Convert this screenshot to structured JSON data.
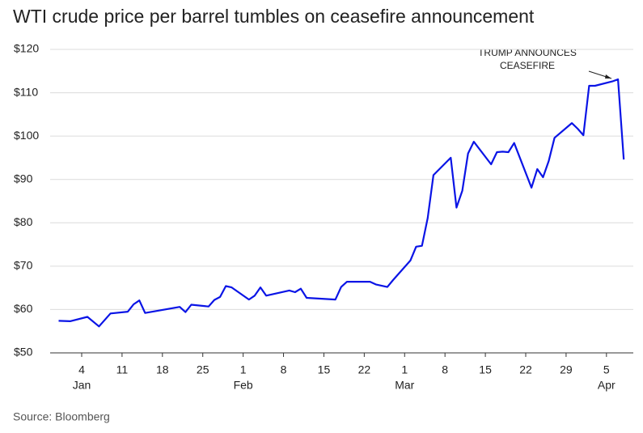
{
  "chart_data": {
    "type": "line",
    "title": "WTI crude price per barrel tumbles on ceasefire announcement",
    "source": "Source: Bloomberg",
    "annotation": [
      "TRUMP ANNOUNCES",
      "CEASEFIRE"
    ],
    "x": [
      "Dec 31",
      "Jan 2",
      "Jan 5",
      "Jan 7",
      "Jan 9",
      "Jan 12",
      "Jan 13",
      "Jan 14",
      "Jan 15",
      "Jan 21",
      "Jan 22",
      "Jan 23",
      "Jan 26",
      "Jan 27",
      "Jan 28",
      "Jan 29",
      "Jan 30",
      "Feb 2",
      "Feb 3",
      "Feb 4",
      "Feb 5",
      "Feb 9",
      "Feb 10",
      "Feb 11",
      "Feb 12",
      "Feb 17",
      "Feb 18",
      "Feb 19",
      "Feb 23",
      "Feb 24",
      "Feb 26",
      "Feb 27",
      "Mar 2",
      "Mar 3",
      "Mar 4",
      "Mar 5",
      "Mar 6",
      "Mar 9",
      "Mar 10",
      "Mar 11",
      "Mar 12",
      "Mar 13",
      "Mar 16",
      "Mar 17",
      "Mar 18",
      "Mar 19",
      "Mar 20",
      "Mar 23",
      "Mar 24",
      "Mar 25",
      "Mar 26",
      "Mar 27",
      "Mar 30",
      "Mar 31",
      "Apr 1",
      "Apr 2",
      "Apr 3",
      "Apr 6",
      "Apr 7",
      "Apr 8"
    ],
    "series": [
      {
        "name": "WTI",
        "color": "#0a14e6",
        "values": [
          57.4,
          57.3,
          58.3,
          56.1,
          59.1,
          59.5,
          61.2,
          62.1,
          59.2,
          60.6,
          59.4,
          61.1,
          60.7,
          62.2,
          62.9,
          65.4,
          65.1,
          62.3,
          63.2,
          65.1,
          63.2,
          64.4,
          64.0,
          64.8,
          62.7,
          62.3,
          65.2,
          66.4,
          66.4,
          65.8,
          65.2,
          66.8,
          71.3,
          74.5,
          74.7,
          81.1,
          91.0,
          95.0,
          83.5,
          87.4,
          96.0,
          98.7,
          93.5,
          96.3,
          96.4,
          96.3,
          98.4,
          88.1,
          92.4,
          90.5,
          94.3,
          99.6,
          103.0,
          101.7,
          100.2,
          111.6,
          111.6,
          112.6,
          113.1,
          94.6
        ]
      }
    ],
    "ylim": [
      50,
      120
    ],
    "yticks": [
      {
        "value": 50,
        "label": "$50"
      },
      {
        "value": 60,
        "label": "$60"
      },
      {
        "value": 70,
        "label": "$70"
      },
      {
        "value": 80,
        "label": "$80"
      },
      {
        "value": 90,
        "label": "$90"
      },
      {
        "value": 100,
        "label": "$100"
      },
      {
        "value": 110,
        "label": "$110"
      },
      {
        "value": 120,
        "label": "$120"
      }
    ],
    "xticks": [
      {
        "value": "Jan 4",
        "label": "4"
      },
      {
        "value": "Jan 11",
        "label": "11"
      },
      {
        "value": "Jan 18",
        "label": "18"
      },
      {
        "value": "Jan 25",
        "label": "25"
      },
      {
        "value": "Feb 1",
        "label": "1"
      },
      {
        "value": "Feb 8",
        "label": "8"
      },
      {
        "value": "Feb 15",
        "label": "15"
      },
      {
        "value": "Feb 22",
        "label": "22"
      },
      {
        "value": "Mar 1",
        "label": "1"
      },
      {
        "value": "Mar 8",
        "label": "8"
      },
      {
        "value": "Mar 15",
        "label": "15"
      },
      {
        "value": "Mar 22",
        "label": "22"
      },
      {
        "value": "Mar 29",
        "label": "29"
      },
      {
        "value": "Apr 5",
        "label": "5"
      }
    ],
    "months": [
      {
        "value": "Jan 4",
        "label": "Jan"
      },
      {
        "value": "Feb 1",
        "label": "Feb"
      },
      {
        "value": "Mar 1",
        "label": "Mar"
      },
      {
        "value": "Apr 5",
        "label": "Apr"
      }
    ],
    "grid": true
  }
}
